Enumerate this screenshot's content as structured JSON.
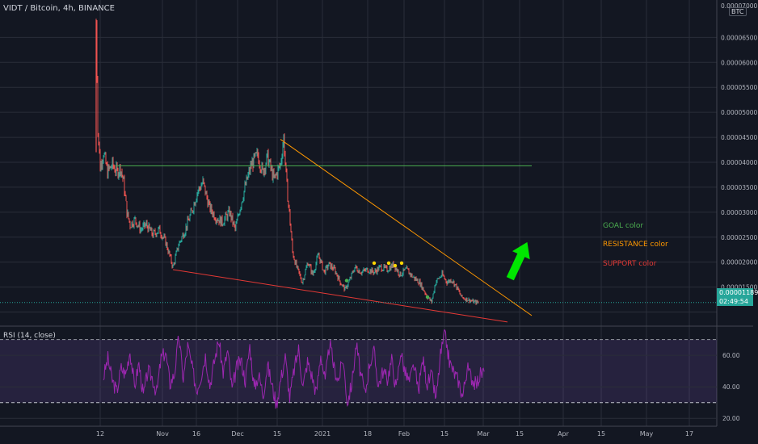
{
  "header": {
    "title": "VIDT / Bitcoin, 4h, BINANCE",
    "currency": "BTC"
  },
  "rsi": {
    "title": "RSI (14, close)",
    "levels": [
      70,
      30
    ],
    "ticks": [
      "60.00",
      "40.00",
      "20.00"
    ]
  },
  "price_badge": {
    "value": "0.00001189",
    "timer": "02:49:54"
  },
  "legend": {
    "goal": "GOAL color",
    "resistance": "RESISTANCE color",
    "support": "SUPPORT color"
  },
  "colors": {
    "background": "#131722",
    "up": "#26a69a",
    "down": "#ef5350",
    "goal": "#4caf50",
    "resistance": "#ff9800",
    "support": "#e53935",
    "rsi": "#9c27b0",
    "arrow": "#00e600",
    "marker": "#ffd600"
  },
  "chart_data": {
    "type": "line",
    "title": "VIDT / Bitcoin, 4h, BINANCE",
    "y_ticks": [
      "0.00006500",
      "0.00006000",
      "0.00005500",
      "0.00005000",
      "0.00004500",
      "0.00004000",
      "0.00003500",
      "0.00003000",
      "0.00002500",
      "0.00002000",
      "0.00001500"
    ],
    "y_top_partial": "0.00007000",
    "x_ticks": [
      "12",
      "Nov",
      "16",
      "Dec",
      "15",
      "2021",
      "18",
      "Feb",
      "15",
      "Mar",
      "15",
      "Apr",
      "15",
      "May",
      "17"
    ],
    "ylim": [
      7.5e-06,
      7.25e-05
    ],
    "price_series": [
      [
        0,
        6.8e-05
      ],
      [
        2,
        4.7e-05
      ],
      [
        5,
        3.9e-05
      ],
      [
        9,
        4.2e-05
      ],
      [
        14,
        3.8e-05
      ],
      [
        20,
        3.95e-05
      ],
      [
        26,
        3.8e-05
      ],
      [
        30,
        3.9e-05
      ],
      [
        34,
        3.6e-05
      ],
      [
        38,
        3e-05
      ],
      [
        42,
        2.75e-05
      ],
      [
        48,
        2.85e-05
      ],
      [
        55,
        2.65e-05
      ],
      [
        62,
        2.75e-05
      ],
      [
        70,
        2.55e-05
      ],
      [
        78,
        2.65e-05
      ],
      [
        86,
        2.4e-05
      ],
      [
        95,
        1.9e-05
      ],
      [
        102,
        2.35e-05
      ],
      [
        110,
        2.65e-05
      ],
      [
        118,
        3e-05
      ],
      [
        125,
        3.4e-05
      ],
      [
        132,
        3.6e-05
      ],
      [
        140,
        3.1e-05
      ],
      [
        148,
        2.9e-05
      ],
      [
        156,
        2.8e-05
      ],
      [
        165,
        3e-05
      ],
      [
        172,
        2.65e-05
      ],
      [
        178,
        3.1e-05
      ],
      [
        185,
        3.55e-05
      ],
      [
        192,
        3.95e-05
      ],
      [
        200,
        4.15e-05
      ],
      [
        206,
        3.8e-05
      ],
      [
        212,
        4.1e-05
      ],
      [
        220,
        3.65e-05
      ],
      [
        228,
        3.95e-05
      ],
      [
        232,
        4.5e-05
      ],
      [
        236,
        3.5e-05
      ],
      [
        240,
        2.8e-05
      ],
      [
        243,
        2.2e-05
      ],
      [
        248,
        1.9e-05
      ],
      [
        255,
        1.6e-05
      ],
      [
        262,
        2e-05
      ],
      [
        268,
        1.75e-05
      ],
      [
        275,
        2.15e-05
      ],
      [
        282,
        1.8e-05
      ],
      [
        288,
        1.95e-05
      ],
      [
        295,
        1.85e-05
      ],
      [
        302,
        1.6e-05
      ],
      [
        308,
        1.45e-05
      ],
      [
        314,
        1.65e-05
      ],
      [
        320,
        1.9e-05
      ],
      [
        328,
        1.8e-05
      ],
      [
        336,
        1.85e-05
      ],
      [
        344,
        1.8e-05
      ],
      [
        352,
        1.9e-05
      ],
      [
        360,
        1.85e-05
      ],
      [
        368,
        1.95e-05
      ],
      [
        376,
        1.75e-05
      ],
      [
        384,
        1.85e-05
      ],
      [
        392,
        1.7e-05
      ],
      [
        400,
        1.6e-05
      ],
      [
        405,
        1.45e-05
      ],
      [
        410,
        1.3e-05
      ],
      [
        415,
        1.2e-05
      ],
      [
        420,
        1.6e-05
      ],
      [
        428,
        1.75e-05
      ],
      [
        434,
        1.6e-05
      ],
      [
        440,
        1.65e-05
      ],
      [
        446,
        1.5e-05
      ],
      [
        452,
        1.3e-05
      ],
      [
        460,
        1.25e-05
      ],
      [
        468,
        1.2e-05
      ],
      [
        473,
        1.19e-05
      ]
    ],
    "markers": [
      {
        "color": "yellow",
        "points": [
          [
            344,
            1.98e-05
          ],
          [
            362,
            1.98e-05
          ],
          [
            370,
            1.93e-05
          ],
          [
            378,
            1.98e-05
          ]
        ]
      },
      {
        "color": "green",
        "points": [
          [
            310,
            1.63e-05
          ],
          [
            410,
            1.3e-05
          ]
        ]
      }
    ],
    "annotations": {
      "goal_line": {
        "y": 3.93e-05
      },
      "resistance_line": {
        "from": 4.46e-05,
        "to": 9.3e-06
      },
      "support_line": {
        "from": 1.85e-05,
        "to": 8e-06
      }
    },
    "rsi_series": [
      46,
      58,
      44,
      37,
      52,
      48,
      63,
      40,
      55,
      34,
      50,
      46,
      36,
      58,
      62,
      42,
      48,
      72,
      45,
      66,
      52,
      38,
      47,
      60,
      41,
      56,
      70,
      49,
      63,
      38,
      52,
      57,
      44,
      66,
      39,
      48,
      35,
      54,
      41,
      29,
      45,
      59,
      33,
      51,
      64,
      40,
      56,
      47,
      36,
      61,
      43,
      68,
      52,
      44,
      58,
      30,
      42,
      67,
      48,
      35,
      55,
      62,
      41,
      50,
      45,
      57,
      38,
      63,
      49,
      43,
      54,
      37,
      58,
      42,
      47,
      32,
      60,
      74,
      56,
      49,
      44,
      34,
      52,
      46,
      41,
      48,
      50
    ]
  }
}
